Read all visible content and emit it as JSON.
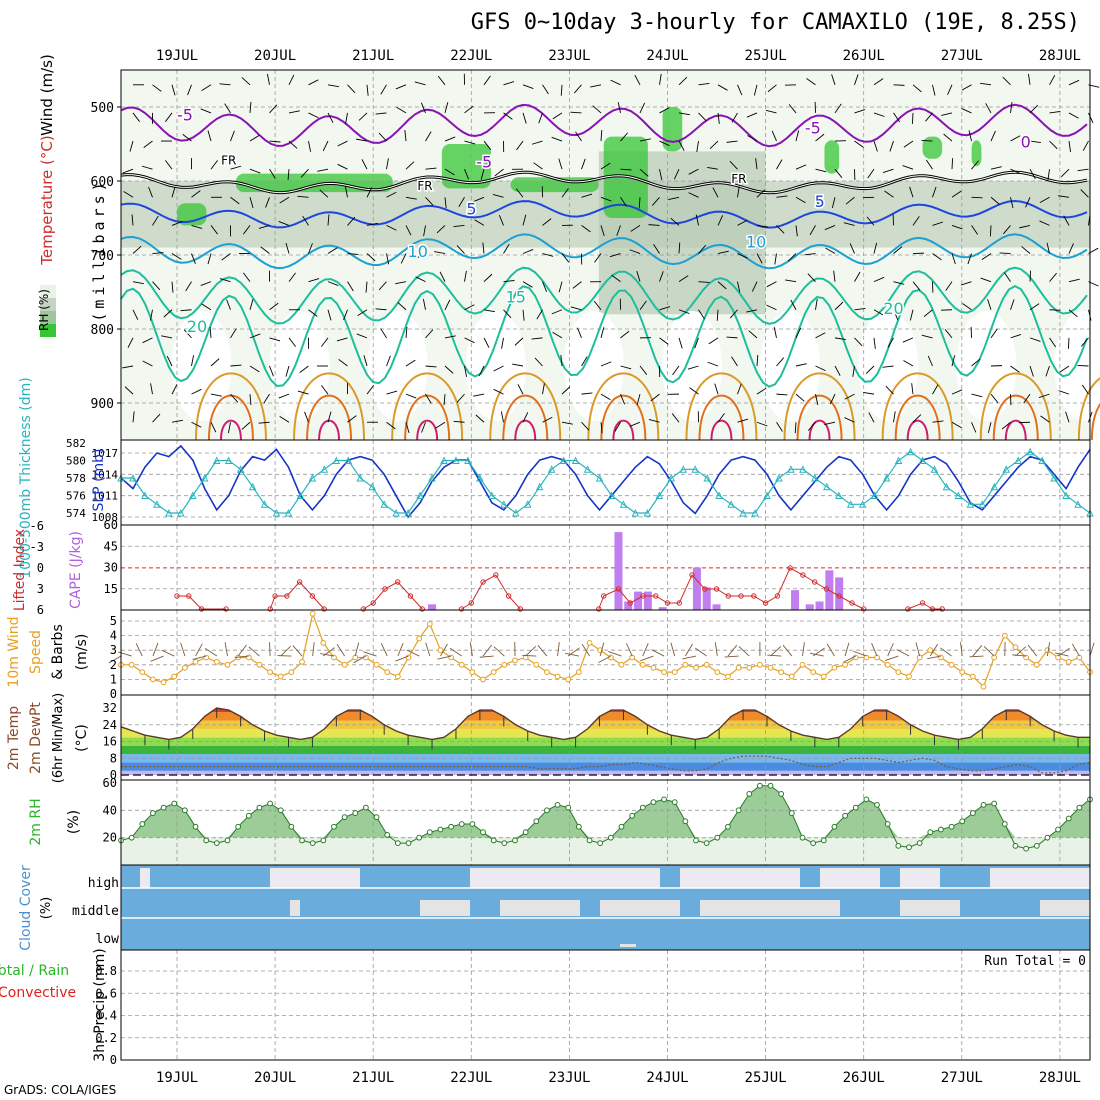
{
  "title": "GFS 0~10day 3-hourly for CAMAXILO (19E, 8.25S)",
  "credit": "GrADS: COLA/IGES",
  "run_total": "Run Total = 0",
  "colors": {
    "rh_green": "#35c535",
    "temp_purple": "#8a12b4",
    "temp_blue": "#1e46dc",
    "temp_cyan": "#1ea0d2",
    "temp_teal": "#1ebe9c",
    "temp_orange": "#d99a2a",
    "slp_line": "#1535c8",
    "thickness_line": "#28b4be",
    "lifted_index": "#d22a2a",
    "cape_bar": "#c07ef0",
    "wind_speed": "#e6a020",
    "rh2m_fill": "#6cbd6c",
    "cloud_blue": "#6aacdc",
    "precip_convective": "#e02020"
  },
  "chart_data": [
    {
      "type": "contour",
      "panel": "upper-air",
      "x_ticks": [
        "19JUL",
        "20JUL",
        "21JUL",
        "22JUL",
        "23JUL",
        "24JUL",
        "25JUL",
        "26JUL",
        "27JUL",
        "28JUL"
      ],
      "ylabel": "(millibars)",
      "y_ticks": [
        "500",
        "600",
        "700",
        "800",
        "900"
      ],
      "side_labels": [
        "Wind (m/s)",
        "Temperature (°C)",
        "RH (%)"
      ],
      "contour_labels": [
        {
          "text": "-5",
          "color": "#8a12b4",
          "day": 0.0,
          "p": 518
        },
        {
          "text": "-5",
          "color": "#8a12b4",
          "day": 3.05,
          "p": 582
        },
        {
          "text": "-5",
          "color": "#8a12b4",
          "day": 6.4,
          "p": 536
        },
        {
          "text": "0",
          "color": "#8a12b4",
          "day": 8.6,
          "p": 555
        },
        {
          "text": "FR",
          "color": "#000",
          "day": 0.45,
          "p": 578
        },
        {
          "text": "FR",
          "color": "#000",
          "day": 2.45,
          "p": 612
        },
        {
          "text": "FR",
          "color": "#000",
          "day": 5.65,
          "p": 603
        },
        {
          "text": "5",
          "color": "#1e46dc",
          "day": 2.95,
          "p": 645
        },
        {
          "text": "5",
          "color": "#1e46dc",
          "day": 6.5,
          "p": 635
        },
        {
          "text": "10",
          "color": "#1ea0d2",
          "day": 2.35,
          "p": 703
        },
        {
          "text": "10",
          "color": "#1ea0d2",
          "day": 5.8,
          "p": 690
        },
        {
          "text": "15",
          "color": "#1ebe9c",
          "day": 3.35,
          "p": 764
        },
        {
          "text": "20",
          "color": "#1ebe9c",
          "day": 0.1,
          "p": 804
        },
        {
          "text": "20",
          "color": "#1ebe9c",
          "day": 7.2,
          "p": 780
        }
      ],
      "rh_legend": "RH (%)"
    },
    {
      "type": "line",
      "panel": "slp-thickness",
      "y1label": "SLP (mb)",
      "y1_ticks": [
        1008,
        1011,
        1014,
        1017
      ],
      "y2label": "1000-500mb Thickness (dm)",
      "y2_ticks": [
        574,
        576,
        578,
        580,
        582
      ],
      "series": [
        {
          "name": "SLP (mb)",
          "axis": "y1",
          "values": [
            1013.5,
            1012,
            1015,
            1017,
            1016.5,
            1018,
            1016,
            1012,
            1009,
            1011,
            1014.5,
            1016.5,
            1016,
            1017.5,
            1015,
            1011,
            1009,
            1011,
            1014,
            1016,
            1016.5,
            1016,
            1014,
            1011,
            1008,
            1010,
            1013,
            1015,
            1016,
            1016,
            1013,
            1010,
            1009,
            1011,
            1014,
            1016,
            1016.5,
            1016,
            1014,
            1011,
            1009,
            1011,
            1013,
            1015,
            1016.5,
            1015.5,
            1013,
            1010,
            1008.5,
            1011,
            1014,
            1016,
            1016.5,
            1016,
            1014,
            1011,
            1009,
            1011,
            1013,
            1015,
            1016.5,
            1016,
            1014,
            1011,
            1009,
            1011,
            1014,
            1016,
            1016.5,
            1015.5,
            1013,
            1010,
            1009,
            1011,
            1013,
            1015,
            1016.5,
            1016,
            1014,
            1012,
            1015,
            1017.5
          ]
        },
        {
          "name": "1000-500mb Thickness (dm)",
          "axis": "y2",
          "values": [
            578,
            578,
            576,
            575,
            574,
            574,
            576,
            578,
            580,
            580,
            579,
            577,
            575,
            574,
            574,
            576,
            578,
            579,
            580,
            580,
            578,
            577,
            575,
            574,
            574,
            576,
            578,
            580,
            580,
            580,
            578,
            576,
            575,
            574,
            575,
            577,
            579,
            580,
            580,
            579,
            578,
            576,
            575,
            574,
            574,
            576,
            578,
            579,
            579,
            578,
            576,
            575,
            574,
            574,
            576,
            578,
            579,
            579,
            578,
            577,
            576,
            575,
            575,
            576,
            578,
            580,
            581,
            580,
            579,
            577,
            576,
            575,
            575,
            577,
            579,
            580,
            581,
            580,
            578,
            576,
            575,
            574
          ]
        }
      ]
    },
    {
      "type": "bar",
      "panel": "cape-li",
      "y1label": "CAPE (J/kg)",
      "y1_ticks": [
        15,
        30,
        45,
        60
      ],
      "y2label": "Lifted Index",
      "y2_ticks": [
        "6",
        "3",
        "0",
        "-3",
        "-6"
      ],
      "cape_bars": [
        {
          "day": 4.95,
          "value": 2
        },
        {
          "day": 7.1,
          "value": 0
        },
        {
          "day": 9.7,
          "value": 1
        },
        {
          "day": 2.6,
          "value": 4
        },
        {
          "day": 4.5,
          "value": 55
        },
        {
          "day": 4.6,
          "value": 6
        },
        {
          "day": 4.7,
          "value": 13
        },
        {
          "day": 4.8,
          "value": 13
        },
        {
          "day": 5.3,
          "value": 30
        },
        {
          "day": 5.4,
          "value": 16
        },
        {
          "day": 5.5,
          "value": 4
        },
        {
          "day": 6.3,
          "value": 14
        },
        {
          "day": 6.45,
          "value": 4
        },
        {
          "day": 6.55,
          "value": 6
        },
        {
          "day": 6.65,
          "value": 28
        },
        {
          "day": 6.75,
          "value": 23
        }
      ],
      "lifted_index": [
        {
          "day": 0,
          "value": 4
        },
        {
          "day": 0.12,
          "value": 4
        },
        {
          "day": 0.25,
          "value": 6
        },
        {
          "day": 0.5,
          "value": 8
        },
        {
          "day": 0.95,
          "value": 8
        },
        {
          "day": 1.0,
          "value": 4
        },
        {
          "day": 1.12,
          "value": 4
        },
        {
          "day": 1.25,
          "value": 2
        },
        {
          "day": 1.38,
          "value": 4
        },
        {
          "day": 1.5,
          "value": 7
        },
        {
          "day": 1.9,
          "value": 8
        },
        {
          "day": 2.0,
          "value": 5
        },
        {
          "day": 2.12,
          "value": 3
        },
        {
          "day": 2.25,
          "value": 2
        },
        {
          "day": 2.38,
          "value": 4
        },
        {
          "day": 2.5,
          "value": 7
        },
        {
          "day": 2.9,
          "value": 8
        },
        {
          "day": 3.0,
          "value": 5
        },
        {
          "day": 3.12,
          "value": 2
        },
        {
          "day": 3.25,
          "value": 1
        },
        {
          "day": 3.38,
          "value": 4
        },
        {
          "day": 3.5,
          "value": 7
        },
        {
          "day": 4.3,
          "value": 7
        },
        {
          "day": 4.35,
          "value": 4
        },
        {
          "day": 4.5,
          "value": 3
        },
        {
          "day": 4.62,
          "value": 5
        },
        {
          "day": 4.75,
          "value": 4
        },
        {
          "day": 4.88,
          "value": 4
        },
        {
          "day": 5.0,
          "value": 5
        },
        {
          "day": 5.12,
          "value": 5
        },
        {
          "day": 5.25,
          "value": 1
        },
        {
          "day": 5.38,
          "value": 3
        },
        {
          "day": 5.5,
          "value": 3
        },
        {
          "day": 5.62,
          "value": 4
        },
        {
          "day": 5.75,
          "value": 4
        },
        {
          "day": 5.88,
          "value": 4
        },
        {
          "day": 6.0,
          "value": 5
        },
        {
          "day": 6.12,
          "value": 4
        },
        {
          "day": 6.25,
          "value": 0
        },
        {
          "day": 6.38,
          "value": 1
        },
        {
          "day": 6.5,
          "value": 2
        },
        {
          "day": 6.62,
          "value": 3
        },
        {
          "day": 6.75,
          "value": 4
        },
        {
          "day": 6.88,
          "value": 5
        },
        {
          "day": 7.0,
          "value": 7
        },
        {
          "day": 7.45,
          "value": 7
        },
        {
          "day": 7.6,
          "value": 5
        },
        {
          "day": 7.7,
          "value": 6
        },
        {
          "day": 7.8,
          "value": 8
        }
      ]
    },
    {
      "type": "line",
      "panel": "wind10m",
      "ylabel": "10m Wind Speed & Barbs (m/s)",
      "y_ticks": [
        0,
        1,
        2,
        3,
        4,
        5
      ],
      "values": [
        2,
        2,
        1.5,
        1,
        0.8,
        1.2,
        1.8,
        2.2,
        2.5,
        2.2,
        2,
        2.5,
        2.5,
        2,
        1.5,
        1.2,
        1.5,
        2.2,
        5.5,
        3.5,
        2.5,
        2,
        2.5,
        2.5,
        2,
        1.5,
        1.2,
        2.5,
        3.8,
        4.8,
        3,
        2.5,
        2,
        1.5,
        1,
        1.5,
        2,
        2.3,
        2.5,
        2,
        1.5,
        1.2,
        1,
        1.5,
        3.5,
        3,
        2.5,
        2,
        2.5,
        2,
        1.8,
        1.5,
        1.5,
        2,
        1.8,
        2,
        1.5,
        1.2,
        1.8,
        1.8,
        2,
        1.8,
        1.5,
        1.2,
        2,
        1.5,
        1.2,
        1.8,
        2,
        2.5,
        2.5,
        2.5,
        2,
        1.5,
        1.2,
        2.5,
        3,
        2.5,
        2,
        1.5,
        1.2,
        0.5,
        2.5,
        4,
        3.2,
        2.5,
        2,
        3,
        2.5,
        2.2,
        2.5,
        1.5
      ]
    },
    {
      "type": "area",
      "panel": "temp2m",
      "ylabel": "2m Temp 2m DewPt (6hr Min/Max) (°C)",
      "y_ticks": [
        0,
        8,
        16,
        24,
        32
      ],
      "temperature": [
        23,
        21,
        19,
        18,
        17,
        18,
        22,
        28,
        32,
        31,
        28,
        24,
        21,
        19,
        18,
        17,
        18,
        22,
        28,
        31,
        31,
        28,
        24,
        21,
        19,
        18,
        17,
        18,
        22,
        28,
        31,
        31,
        28,
        24,
        21,
        19,
        18,
        17,
        18,
        22,
        28,
        31,
        31,
        28,
        24,
        21,
        19,
        18,
        17,
        18,
        22,
        28,
        31,
        31,
        28,
        24,
        21,
        19,
        18,
        17,
        18,
        22,
        28,
        31,
        31,
        28,
        24,
        21,
        19,
        18,
        17,
        18,
        22,
        28,
        31,
        31,
        28,
        24,
        21,
        19,
        18,
        18
      ],
      "dewpoint": [
        4,
        4,
        4,
        4,
        4,
        4,
        4,
        4,
        4,
        4,
        4,
        4,
        4,
        4,
        4,
        4,
        4,
        4,
        4,
        4,
        4,
        4,
        4,
        4,
        4,
        4,
        4,
        4,
        4,
        4,
        4,
        4,
        4,
        4,
        4,
        3,
        3,
        3,
        3,
        4,
        4,
        5,
        5,
        6,
        5,
        4,
        3,
        2,
        2,
        3,
        6,
        8,
        9,
        9,
        9,
        8,
        7,
        5,
        4,
        4,
        6,
        8,
        8,
        8,
        7,
        6,
        7,
        8,
        7,
        4,
        3,
        2,
        2,
        3,
        4,
        5,
        4,
        1,
        1,
        2,
        5,
        6
      ]
    },
    {
      "type": "area",
      "panel": "rh2m",
      "ylabel": "2m RH (%)",
      "y_ticks": [
        20,
        40,
        60
      ],
      "values": [
        18,
        20,
        30,
        38,
        42,
        45,
        40,
        28,
        18,
        16,
        18,
        28,
        36,
        42,
        45,
        40,
        28,
        18,
        16,
        18,
        28,
        35,
        38,
        42,
        35,
        22,
        16,
        16,
        20,
        24,
        26,
        28,
        30,
        30,
        24,
        18,
        16,
        18,
        24,
        32,
        40,
        44,
        42,
        28,
        18,
        16,
        20,
        28,
        36,
        42,
        46,
        48,
        46,
        32,
        18,
        16,
        20,
        28,
        40,
        52,
        58,
        58,
        52,
        38,
        20,
        16,
        18,
        28,
        36,
        42,
        48,
        44,
        30,
        14,
        13,
        16,
        24,
        26,
        28,
        32,
        38,
        44,
        45,
        30,
        14,
        12,
        14,
        20,
        26,
        34,
        42,
        48
      ]
    },
    {
      "type": "heatmap",
      "panel": "cloud",
      "ylabel": "Cloud Cover (%)",
      "levels": [
        "high",
        "middle",
        "low"
      ]
    },
    {
      "type": "bar",
      "panel": "precip",
      "ylabel": "3hr Precip (mm)",
      "side_labels": [
        "Total / Rain",
        "Convective"
      ],
      "y_ticks": [
        "0",
        "0.2",
        "0.4",
        "0.6",
        "0.8"
      ],
      "values": []
    }
  ]
}
